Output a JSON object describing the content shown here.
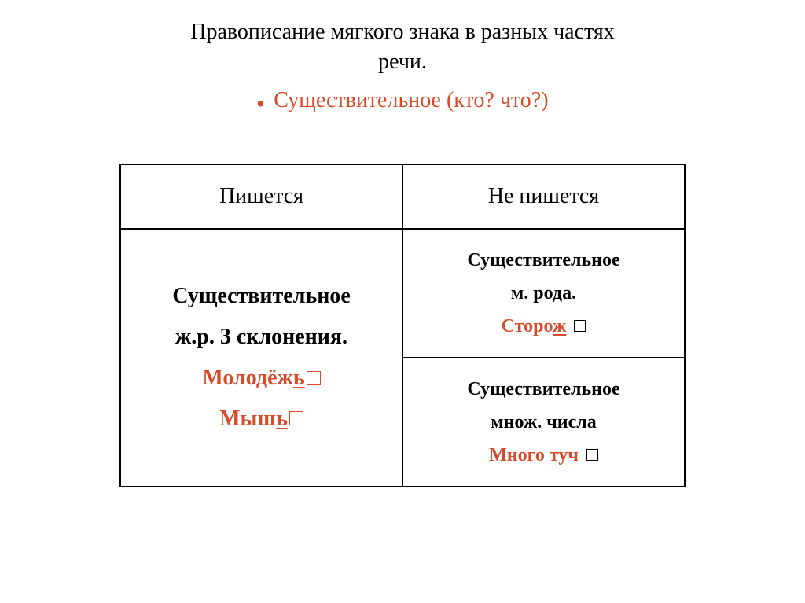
{
  "title_line1": "Правописание мягкого знака в разных частях",
  "title_line2": "речи.",
  "subtitle": "Существительное (кто? что?)",
  "headers": {
    "left": "Пишется",
    "right": "Не пишется"
  },
  "leftCell": {
    "line1": "Существительное",
    "line2": "ж.р. 3 склонения.",
    "example1_stem": "Молодёж",
    "example1_suffix": "ь",
    "example2_stem": "Мыш",
    "example2_suffix": "ь"
  },
  "rightTop": {
    "line1": "Существительное",
    "line2": "м. рода.",
    "example_stem": "Сторо",
    "example_suffix": "ж"
  },
  "rightBottom": {
    "line1": "Существительное",
    "line2": "множ. числа",
    "example": "Много туч"
  },
  "colors": {
    "accent": "#d64b2a",
    "text": "#000000",
    "background": "#ffffff"
  }
}
